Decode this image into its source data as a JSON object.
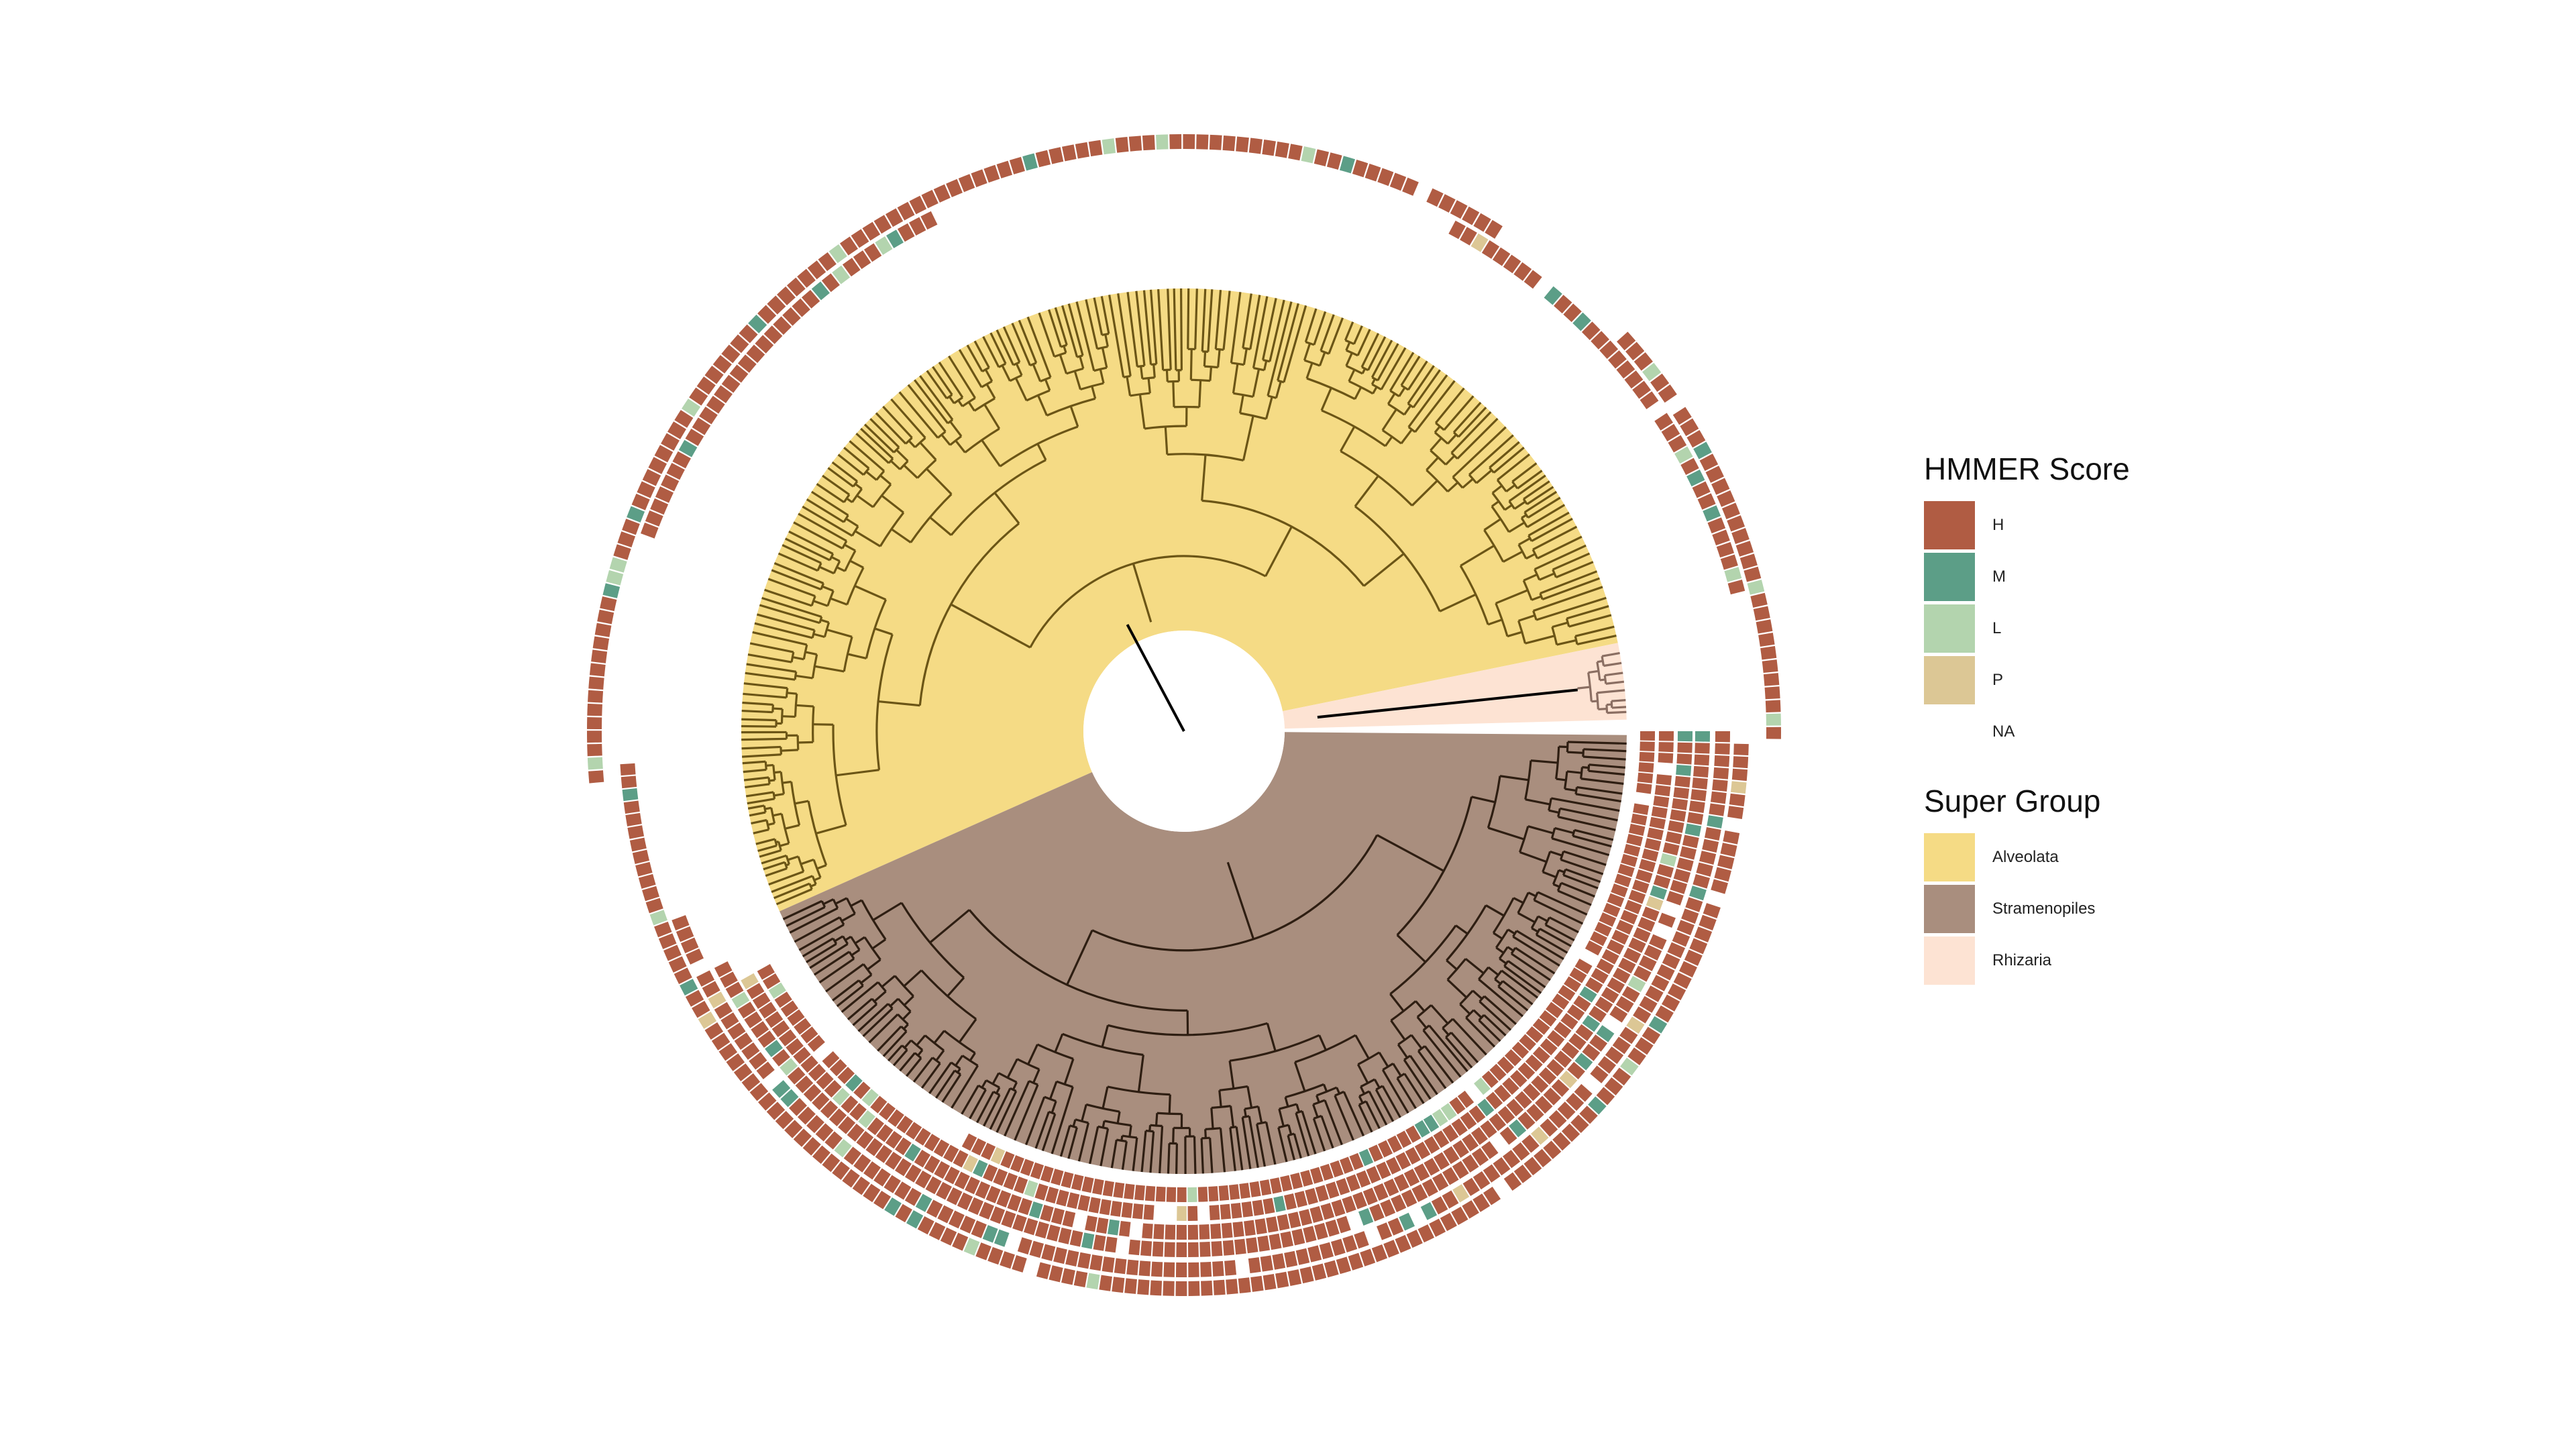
{
  "legends": {
    "hmmer": {
      "title": "HMMER Score",
      "items": [
        {
          "label": "H",
          "color": "#B05C43"
        },
        {
          "label": "M",
          "color": "#5C9E87"
        },
        {
          "label": "L",
          "color": "#B3D4AE"
        },
        {
          "label": "P",
          "color": "#DCC795"
        },
        {
          "label": "NA",
          "color": "#FFFFFF"
        }
      ]
    },
    "super_group": {
      "title": "Super Group",
      "items": [
        {
          "label": "Alveolata",
          "color": "#F5DB85"
        },
        {
          "label": "Stramenopiles",
          "color": "#A98E7E"
        },
        {
          "label": "Rhizaria",
          "color": "#FDE3D3"
        }
      ]
    }
  },
  "tree": {
    "branch_color_alveolata": "#6B5516",
    "branch_color_stramenopiles": "#2E1E12",
    "branch_color_rhizaria": "#8A6E62",
    "root_color": "#000000"
  }
}
